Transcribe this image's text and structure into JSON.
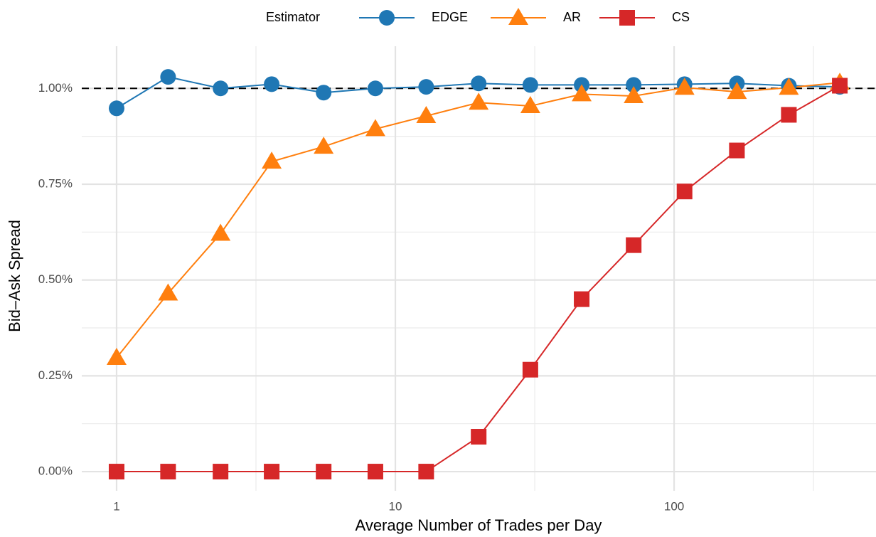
{
  "chart_data": {
    "type": "line",
    "x_label": "Average Number of Trades per Day",
    "y_label": "Bid–Ask Spread",
    "legend_title": "Estimator",
    "legend_position": "top",
    "x_scale": "log",
    "grid": true,
    "hline": 1,
    "xlim": [
      0.75,
      530
    ],
    "ylim": [
      -0.05,
      1.11
    ],
    "xticks": [
      1,
      10,
      100
    ],
    "yticks": [
      {
        "value": 0,
        "label": "0.00%"
      },
      {
        "value": 0.25,
        "label": "0.25%"
      },
      {
        "value": 0.5,
        "label": "0.50%"
      },
      {
        "value": 0.75,
        "label": "0.75%"
      },
      {
        "value": 1,
        "label": "1.00%"
      }
    ],
    "x": [
      1,
      1.53,
      2.36,
      3.6,
      5.53,
      8.48,
      12.9,
      19.9,
      30.5,
      46.6,
      71.6,
      109,
      168,
      258,
      393
    ],
    "series": [
      {
        "name": "EDGE",
        "color": "#1f77b4",
        "marker": "circle",
        "values": [
          0.948,
          1.03,
          1.0,
          1.011,
          0.989,
          1.0,
          1.004,
          1.013,
          1.009,
          1.009,
          1.009,
          1.011,
          1.013,
          1.007,
          1.004
        ]
      },
      {
        "name": "AR",
        "color": "#ff7f0e",
        "marker": "triangle",
        "values": [
          0.297,
          0.465,
          0.621,
          0.809,
          0.848,
          0.894,
          0.928,
          0.963,
          0.954,
          0.985,
          0.98,
          1.002,
          0.991,
          1.002,
          1.015
        ]
      },
      {
        "name": "CS",
        "color": "#d62728",
        "marker": "square",
        "values": [
          0,
          0,
          0,
          0,
          0,
          0,
          0,
          0.091,
          0.266,
          0.45,
          0.591,
          0.731,
          0.838,
          0.931,
          1.007
        ]
      }
    ]
  }
}
